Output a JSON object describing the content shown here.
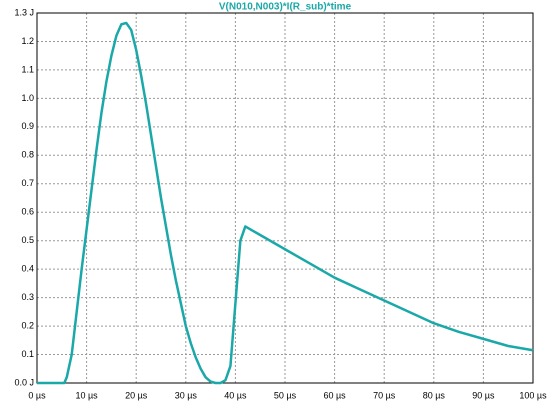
{
  "chart_data": {
    "type": "line",
    "title": "V(N010,N003)*I(R_sub)*time",
    "color": "#1aa8a8",
    "grid": true,
    "x": [
      0,
      5,
      5.5,
      6,
      7,
      8,
      9,
      10,
      11,
      12,
      13,
      14,
      15,
      16,
      17,
      18,
      19,
      20,
      21,
      22,
      23,
      24,
      25,
      26,
      27,
      28,
      29,
      30,
      31,
      32,
      33,
      34,
      35,
      36,
      37,
      38,
      39,
      40,
      41,
      42,
      43,
      45,
      50,
      55,
      60,
      65,
      70,
      75,
      80,
      85,
      90,
      95,
      100
    ],
    "values": [
      0,
      0,
      0,
      0.02,
      0.1,
      0.25,
      0.4,
      0.54,
      0.68,
      0.82,
      0.95,
      1.06,
      1.15,
      1.22,
      1.26,
      1.265,
      1.24,
      1.17,
      1.08,
      0.98,
      0.87,
      0.76,
      0.65,
      0.55,
      0.45,
      0.36,
      0.28,
      0.2,
      0.14,
      0.09,
      0.05,
      0.02,
      0.005,
      0,
      0,
      0.01,
      0.06,
      0.28,
      0.5,
      0.55,
      0.54,
      0.52,
      0.47,
      0.42,
      0.37,
      0.33,
      0.29,
      0.25,
      0.21,
      0.18,
      0.155,
      0.13,
      0.115
    ],
    "xlim": [
      0,
      100
    ],
    "ylim": [
      0,
      1.3
    ],
    "xticks": [
      {
        "value": 0,
        "label": "0 µs"
      },
      {
        "value": 10,
        "label": "10 µs"
      },
      {
        "value": 20,
        "label": "20 µs"
      },
      {
        "value": 30,
        "label": "30 µs"
      },
      {
        "value": 40,
        "label": "40 µs"
      },
      {
        "value": 50,
        "label": "50 µs"
      },
      {
        "value": 60,
        "label": "60 µs"
      },
      {
        "value": 70,
        "label": "70 µs"
      },
      {
        "value": 80,
        "label": "80 µs"
      },
      {
        "value": 90,
        "label": "90 µs"
      },
      {
        "value": 100,
        "label": "100 µs"
      }
    ],
    "yticks": [
      {
        "value": 0,
        "label": "0.0 J"
      },
      {
        "value": 0.1,
        "label": "0.1"
      },
      {
        "value": 0.2,
        "label": "0.2"
      },
      {
        "value": 0.3,
        "label": "0.3"
      },
      {
        "value": 0.4,
        "label": "0.4"
      },
      {
        "value": 0.5,
        "label": "0.5"
      },
      {
        "value": 0.6,
        "label": "0.6"
      },
      {
        "value": 0.7,
        "label": "0.7"
      },
      {
        "value": 0.8,
        "label": "0.8"
      },
      {
        "value": 0.9,
        "label": "0.9"
      },
      {
        "value": 1.0,
        "label": "1.0"
      },
      {
        "value": 1.1,
        "label": "1.1"
      },
      {
        "value": 1.2,
        "label": "1.2"
      },
      {
        "value": 1.3,
        "label": "1.3 J"
      }
    ]
  }
}
